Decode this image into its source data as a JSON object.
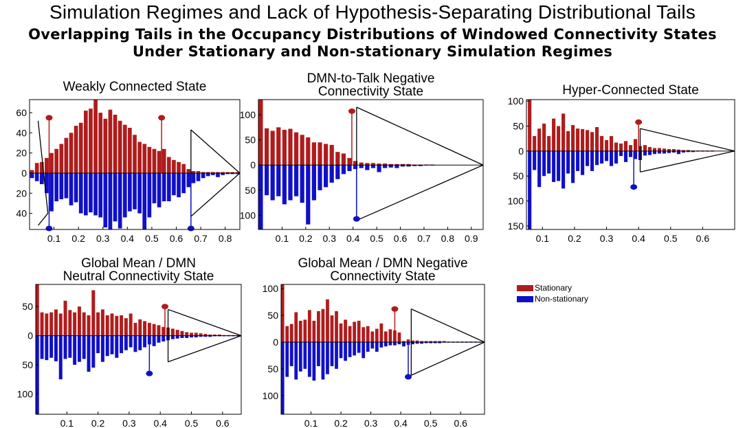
{
  "title": "Simulation Regimes and Lack of Hypothesis-Separating Distributional Tails",
  "subtitle_line1": "Overlapping Tails in the Occupancy Distributions of Windowed Connectivity States",
  "subtitle_line2": "Under Stationary and Non-stationary Simulation Regimes",
  "legend": {
    "stationary": "Stationary",
    "nonstationary": "Non-stationary"
  },
  "colors": {
    "stationary": "#b01c1c",
    "nonstationary": "#1010c8"
  },
  "chart_data": [
    {
      "type": "bar",
      "title": [
        "Weakly Connected State"
      ],
      "xlim": [
        0.0,
        0.86
      ],
      "ylim": [
        -56,
        73
      ],
      "xticks": [
        0.1,
        0.2,
        0.3,
        0.4,
        0.5,
        0.6,
        0.7,
        0.8
      ],
      "yticks": [
        60,
        40,
        20,
        0,
        -20,
        -40
      ],
      "ytick_labels": [
        "60",
        "40",
        "20",
        "0",
        "20",
        "40"
      ],
      "bar_width": 0.016,
      "stationary": {
        "x": [
          0.01,
          0.03,
          0.05,
          0.07,
          0.09,
          0.11,
          0.13,
          0.15,
          0.17,
          0.19,
          0.21,
          0.23,
          0.25,
          0.27,
          0.29,
          0.31,
          0.33,
          0.35,
          0.37,
          0.39,
          0.41,
          0.43,
          0.45,
          0.47,
          0.49,
          0.51,
          0.53,
          0.55,
          0.57,
          0.59,
          0.61,
          0.63,
          0.65,
          0.67,
          0.69,
          0.71,
          0.73,
          0.75,
          0.77,
          0.79,
          0.81,
          0.83,
          0.85
        ],
        "values": [
          3,
          10,
          11,
          15,
          20,
          24,
          29,
          35,
          40,
          47,
          50,
          62,
          64,
          73,
          60,
          54,
          63,
          58,
          52,
          48,
          45,
          38,
          31,
          29,
          26,
          24,
          22,
          24,
          16,
          13,
          11,
          9,
          4,
          2,
          2,
          1,
          1,
          1,
          1,
          1,
          1,
          1,
          1
        ]
      },
      "nonstationary": {
        "x": [
          0.01,
          0.03,
          0.05,
          0.07,
          0.09,
          0.11,
          0.13,
          0.15,
          0.17,
          0.19,
          0.21,
          0.23,
          0.25,
          0.27,
          0.29,
          0.31,
          0.33,
          0.35,
          0.37,
          0.39,
          0.41,
          0.43,
          0.45,
          0.47,
          0.49,
          0.51,
          0.53,
          0.55,
          0.57,
          0.59,
          0.61,
          0.63,
          0.65,
          0.67,
          0.69,
          0.71,
          0.73,
          0.75,
          0.77,
          0.79,
          0.81,
          0.83,
          0.85
        ],
        "values": [
          -5,
          -8,
          -11,
          -20,
          -38,
          -28,
          -26,
          -25,
          -32,
          -29,
          -40,
          -42,
          -39,
          -42,
          -44,
          -54,
          -56,
          -48,
          -55,
          -44,
          -38,
          -36,
          -40,
          -56,
          -44,
          -30,
          -34,
          -28,
          -28,
          -22,
          -24,
          -20,
          -14,
          -10,
          -8,
          -5,
          -3,
          -2,
          -4,
          -2,
          -1,
          -1,
          -1
        ]
      },
      "stem_stationary": [
        {
          "x": 0.08,
          "y": 55
        },
        {
          "x": 0.54,
          "y": 55
        }
      ],
      "stem_nonstationary": [
        {
          "x": 0.08,
          "y": -55
        },
        {
          "x": 0.66,
          "y": -55
        }
      ]
    },
    {
      "type": "bar",
      "title": [
        "DMN-to-Talk Negative",
        "Connectivity State"
      ],
      "xlim": [
        0.0,
        0.95
      ],
      "ylim": [
        -128,
        130
      ],
      "xticks": [
        0.1,
        0.2,
        0.3,
        0.4,
        0.5,
        0.6,
        0.7,
        0.8,
        0.9
      ],
      "yticks": [
        100,
        50,
        0,
        -50,
        -100
      ],
      "ytick_labels": [
        "100",
        "50",
        "0",
        "50",
        "100"
      ],
      "bar_width": 0.018,
      "stationary": {
        "x": [
          0.01,
          0.035,
          0.06,
          0.085,
          0.11,
          0.135,
          0.16,
          0.185,
          0.21,
          0.235,
          0.26,
          0.285,
          0.31,
          0.335,
          0.36,
          0.385,
          0.41,
          0.435,
          0.46,
          0.485,
          0.51,
          0.535,
          0.56,
          0.585,
          0.61,
          0.635,
          0.66,
          0.685,
          0.71,
          0.735
        ],
        "values": [
          130,
          73,
          68,
          75,
          70,
          72,
          65,
          60,
          55,
          45,
          45,
          42,
          40,
          26,
          23,
          14,
          8,
          5,
          4,
          4,
          3,
          3,
          2,
          2,
          2,
          2,
          1,
          1,
          1,
          1
        ]
      },
      "nonstationary": {
        "x": [
          0.01,
          0.035,
          0.06,
          0.085,
          0.11,
          0.135,
          0.16,
          0.185,
          0.21,
          0.235,
          0.26,
          0.285,
          0.31,
          0.335,
          0.36,
          0.385,
          0.41,
          0.435,
          0.46,
          0.485,
          0.51,
          0.535,
          0.56,
          0.585,
          0.61,
          0.635,
          0.66,
          0.685,
          0.71,
          0.735
        ],
        "values": [
          -128,
          -60,
          -70,
          -62,
          -78,
          -70,
          -62,
          -75,
          -118,
          -70,
          -50,
          -44,
          -35,
          -28,
          -18,
          -12,
          -8,
          -6,
          -10,
          -6,
          -14,
          -6,
          -5,
          -6,
          -3,
          -3,
          -2,
          -2,
          -1,
          -1
        ]
      },
      "stem_stationary": [
        {
          "x": 0.395,
          "y": 107
        }
      ],
      "stem_nonstationary": [
        {
          "x": 0.415,
          "y": -107
        }
      ]
    },
    {
      "type": "bar",
      "title": [
        "Hyper-Connected State"
      ],
      "xlim": [
        0.05,
        0.7
      ],
      "ylim": [
        -157,
        103
      ],
      "xticks": [
        0.1,
        0.2,
        0.3,
        0.4,
        0.5,
        0.6
      ],
      "yticks": [
        100,
        50,
        0,
        -50,
        -100,
        -150
      ],
      "ytick_labels": [
        "100",
        "50",
        "0",
        "50",
        "100",
        "150"
      ],
      "bar_width": 0.011,
      "stationary": {
        "x": [
          0.06,
          0.075,
          0.09,
          0.105,
          0.12,
          0.135,
          0.15,
          0.165,
          0.18,
          0.195,
          0.21,
          0.225,
          0.24,
          0.255,
          0.27,
          0.285,
          0.3,
          0.315,
          0.33,
          0.345,
          0.36,
          0.375,
          0.39,
          0.405,
          0.42,
          0.435,
          0.45,
          0.465,
          0.48,
          0.495,
          0.51,
          0.525,
          0.54,
          0.555,
          0.57,
          0.585,
          0.6,
          0.615,
          0.63
        ],
        "values": [
          103,
          30,
          45,
          55,
          30,
          65,
          50,
          75,
          40,
          52,
          45,
          44,
          42,
          38,
          48,
          30,
          22,
          30,
          17,
          15,
          20,
          12,
          24,
          10,
          12,
          8,
          6,
          6,
          5,
          4,
          4,
          3,
          2,
          2,
          1,
          1,
          1,
          1,
          1
        ]
      },
      "nonstationary": {
        "x": [
          0.06,
          0.075,
          0.09,
          0.105,
          0.12,
          0.135,
          0.15,
          0.165,
          0.18,
          0.195,
          0.21,
          0.225,
          0.24,
          0.255,
          0.27,
          0.285,
          0.3,
          0.315,
          0.33,
          0.345,
          0.36,
          0.375,
          0.39,
          0.405,
          0.42,
          0.435,
          0.45,
          0.465,
          0.48,
          0.495,
          0.51,
          0.525,
          0.54,
          0.555,
          0.57,
          0.585,
          0.6,
          0.615,
          0.63
        ],
        "values": [
          -157,
          -38,
          -72,
          -50,
          -45,
          -62,
          -60,
          -75,
          -45,
          -64,
          -40,
          -48,
          -30,
          -40,
          -28,
          -25,
          -20,
          -30,
          -25,
          -10,
          -22,
          -12,
          -16,
          -18,
          -9,
          -8,
          -6,
          -5,
          -5,
          -4,
          -3,
          -6,
          -3,
          -2,
          -2,
          -1,
          -1,
          -1,
          -1
        ]
      },
      "stem_stationary": [
        {
          "x": 0.4,
          "y": 58
        }
      ],
      "stem_nonstationary": [
        {
          "x": 0.385,
          "y": -72
        }
      ]
    },
    {
      "type": "bar",
      "title": [
        "Global Mean / DMN",
        "Neutral Connectivity State"
      ],
      "xlim": [
        0.0,
        0.66
      ],
      "ylim": [
        -135,
        88
      ],
      "xticks": [
        0.1,
        0.2,
        0.3,
        0.4,
        0.5,
        0.6
      ],
      "yticks": [
        50,
        0,
        -50,
        -100
      ],
      "ytick_labels": [
        "50",
        "0",
        "50",
        "100"
      ],
      "bar_width": 0.011,
      "stationary": {
        "x": [
          0.005,
          0.02,
          0.035,
          0.05,
          0.065,
          0.08,
          0.095,
          0.11,
          0.125,
          0.14,
          0.155,
          0.17,
          0.185,
          0.2,
          0.215,
          0.23,
          0.245,
          0.26,
          0.275,
          0.29,
          0.305,
          0.32,
          0.335,
          0.35,
          0.365,
          0.38,
          0.395,
          0.41,
          0.425,
          0.44,
          0.455,
          0.47,
          0.485,
          0.5,
          0.515,
          0.53,
          0.545,
          0.56,
          0.575,
          0.59,
          0.605,
          0.62,
          0.635,
          0.65
        ],
        "values": [
          88,
          40,
          38,
          40,
          45,
          38,
          60,
          44,
          40,
          50,
          40,
          35,
          78,
          40,
          45,
          35,
          38,
          34,
          35,
          30,
          38,
          22,
          28,
          25,
          22,
          20,
          18,
          15,
          14,
          12,
          10,
          8,
          6,
          5,
          5,
          4,
          3,
          2,
          2,
          2,
          1,
          1,
          1,
          1
        ]
      },
      "nonstationary": {
        "x": [
          0.005,
          0.02,
          0.035,
          0.05,
          0.065,
          0.08,
          0.095,
          0.11,
          0.125,
          0.14,
          0.155,
          0.17,
          0.185,
          0.2,
          0.215,
          0.23,
          0.245,
          0.26,
          0.275,
          0.29,
          0.305,
          0.32,
          0.335,
          0.35,
          0.365,
          0.38,
          0.395,
          0.41,
          0.425,
          0.44,
          0.455,
          0.47,
          0.485,
          0.5,
          0.515,
          0.53,
          0.545,
          0.56,
          0.575,
          0.59,
          0.605,
          0.62,
          0.635,
          0.65
        ],
        "values": [
          -135,
          -40,
          -42,
          -38,
          -44,
          -75,
          -40,
          -38,
          -50,
          -45,
          -40,
          -62,
          -55,
          -30,
          -45,
          -35,
          -32,
          -38,
          -30,
          -25,
          -20,
          -28,
          -25,
          -20,
          -15,
          -18,
          -12,
          -10,
          -8,
          -6,
          -5,
          -4,
          -4,
          -3,
          -3,
          -2,
          -2,
          -2,
          -1,
          -1,
          -1,
          -1,
          -1,
          -1
        ]
      },
      "stem_stationary": [
        {
          "x": 0.415,
          "y": 50
        }
      ],
      "stem_nonstationary": [
        {
          "x": 0.365,
          "y": -65
        }
      ]
    },
    {
      "type": "bar",
      "title": [
        "Global Mean / DMN Negative",
        "Connectivity State"
      ],
      "xlim": [
        0.0,
        0.68
      ],
      "ylim": [
        -135,
        108
      ],
      "xticks": [
        0.1,
        0.2,
        0.3,
        0.4,
        0.5,
        0.6
      ],
      "yticks": [
        100,
        50,
        0,
        -50,
        -100
      ],
      "ytick_labels": [
        "100",
        "50",
        "0",
        "50",
        "100"
      ],
      "bar_width": 0.011,
      "stationary": {
        "x": [
          0.005,
          0.02,
          0.035,
          0.05,
          0.065,
          0.08,
          0.095,
          0.11,
          0.125,
          0.14,
          0.155,
          0.17,
          0.185,
          0.2,
          0.215,
          0.23,
          0.245,
          0.26,
          0.275,
          0.29,
          0.305,
          0.32,
          0.335,
          0.35,
          0.365,
          0.38,
          0.395,
          0.41,
          0.425,
          0.44,
          0.455,
          0.47,
          0.485,
          0.5,
          0.515,
          0.53,
          0.545,
          0.56,
          0.575,
          0.59,
          0.605,
          0.62,
          0.635,
          0.65,
          0.665
        ],
        "values": [
          108,
          30,
          34,
          56,
          40,
          42,
          60,
          40,
          58,
          62,
          80,
          50,
          58,
          35,
          42,
          30,
          38,
          40,
          28,
          30,
          20,
          25,
          35,
          20,
          24,
          22,
          18,
          2,
          5,
          3,
          3,
          2,
          2,
          2,
          2,
          2,
          2,
          1,
          1,
          1,
          1,
          1,
          1,
          1,
          1
        ]
      },
      "nonstationary": {
        "x": [
          0.005,
          0.02,
          0.035,
          0.05,
          0.065,
          0.08,
          0.095,
          0.11,
          0.125,
          0.14,
          0.155,
          0.17,
          0.185,
          0.2,
          0.215,
          0.23,
          0.245,
          0.26,
          0.275,
          0.29,
          0.305,
          0.32,
          0.335,
          0.35,
          0.365,
          0.38,
          0.395,
          0.41,
          0.425,
          0.44,
          0.455,
          0.47,
          0.485,
          0.5,
          0.515,
          0.53,
          0.545,
          0.56,
          0.575,
          0.59,
          0.605,
          0.62,
          0.635,
          0.65,
          0.665
        ],
        "values": [
          -135,
          -65,
          -45,
          -70,
          -55,
          -50,
          -65,
          -72,
          -45,
          -70,
          -60,
          -45,
          -50,
          -30,
          -35,
          -28,
          -25,
          -20,
          -30,
          -18,
          -12,
          -18,
          -10,
          -8,
          -6,
          -6,
          -4,
          -8,
          -5,
          -4,
          -3,
          -3,
          -2,
          -2,
          -2,
          -2,
          -1,
          -1,
          -1,
          -1,
          -1,
          -1,
          -1,
          -1,
          -1
        ]
      },
      "stem_stationary": [
        {
          "x": 0.38,
          "y": 62
        }
      ],
      "stem_nonstationary": [
        {
          "x": 0.425,
          "y": -65
        }
      ]
    }
  ]
}
